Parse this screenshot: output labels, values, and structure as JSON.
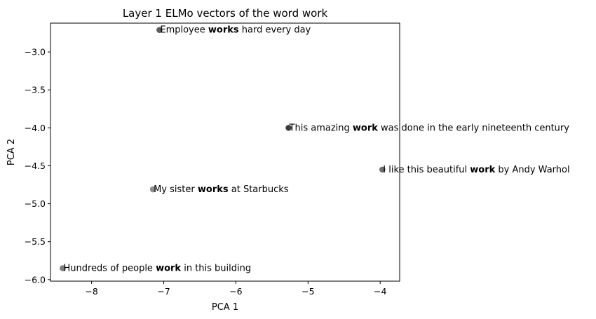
{
  "chart_data": {
    "type": "scatter",
    "title": "Layer 1 ELMo vectors of the word work",
    "xlabel": "PCA 1",
    "ylabel": "PCA 2",
    "xlim": [
      -8.57,
      -3.73
    ],
    "ylim": [
      -6.02,
      -2.62
    ],
    "xticks": [
      -8,
      -7,
      -6,
      -5,
      -4
    ],
    "xtick_labels": [
      "−8",
      "−7",
      "−6",
      "−5",
      "−4"
    ],
    "yticks": [
      -3.0,
      -3.5,
      -4.0,
      -4.5,
      -5.0,
      -5.5,
      -6.0
    ],
    "ytick_labels": [
      "−3.0",
      "−3.5",
      "−4.0",
      "−4.5",
      "−5.0",
      "−5.5",
      "−6.0"
    ],
    "grid": false,
    "legend": "none",
    "points": [
      {
        "x": -7.06,
        "y": -2.71,
        "color": "#555555",
        "label": [
          {
            "text": "Employee ",
            "bold": false
          },
          {
            "text": "works",
            "bold": true
          },
          {
            "text": " hard every day",
            "bold": false
          }
        ]
      },
      {
        "x": -5.27,
        "y": -4.0,
        "color": "#333333",
        "label": [
          {
            "text": "This amazing ",
            "bold": false
          },
          {
            "text": "work",
            "bold": true
          },
          {
            "text": " was done in the early nineteenth century",
            "bold": false
          }
        ]
      },
      {
        "x": -3.97,
        "y": -4.55,
        "color": "#666666",
        "label": [
          {
            "text": "I like this beautiful ",
            "bold": false
          },
          {
            "text": "work",
            "bold": true
          },
          {
            "text": " by Andy Warhol",
            "bold": false
          }
        ]
      },
      {
        "x": -7.15,
        "y": -4.81,
        "color": "#888888",
        "label": [
          {
            "text": "My sister ",
            "bold": false
          },
          {
            "text": "works",
            "bold": true
          },
          {
            "text": " at Starbucks",
            "bold": false
          }
        ]
      },
      {
        "x": -8.4,
        "y": -5.85,
        "color": "#777777",
        "label": [
          {
            "text": "Hundreds of people ",
            "bold": false
          },
          {
            "text": "work",
            "bold": true
          },
          {
            "text": " in this building",
            "bold": false
          }
        ]
      }
    ]
  }
}
